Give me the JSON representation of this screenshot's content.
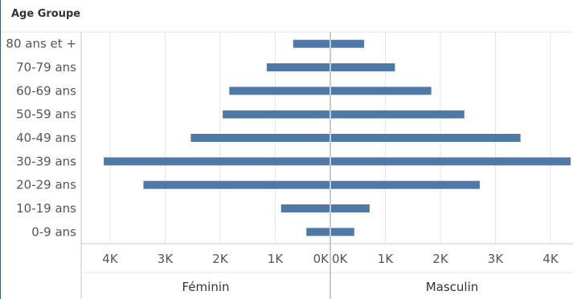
{
  "header": {
    "label": "Age Groupe"
  },
  "colors": {
    "bar": "#4e79a7",
    "grid": "#e6e6e6",
    "axis": "#c8c8c8",
    "zero": "#b8b8b8"
  },
  "chart_data": {
    "type": "bar",
    "orientation": "horizontal",
    "layout": "population-pyramid",
    "categories": [
      "80 ans et +",
      "70-79 ans",
      "60-69 ans",
      "50-59 ans",
      "40-49 ans",
      "30-39 ans",
      "20-29 ans",
      "10-19 ans",
      "0-9 ans"
    ],
    "series": [
      {
        "name": "Féminin",
        "values": [
          660,
          1140,
          1820,
          1940,
          2520,
          4100,
          3380,
          880,
          420
        ]
      },
      {
        "name": "Masculin",
        "values": [
          600,
          1160,
          1820,
          2420,
          3440,
          4350,
          2700,
          700,
          420
        ]
      }
    ],
    "xlim": [
      0,
      4350
    ],
    "ticks": [
      {
        "value": 4000,
        "label": "4K"
      },
      {
        "value": 3000,
        "label": "3K"
      },
      {
        "value": 2000,
        "label": "2K"
      },
      {
        "value": 1000,
        "label": "1K"
      },
      {
        "value": 0,
        "label": "0K"
      }
    ],
    "ticks_right": [
      {
        "value": 0,
        "label": "0K"
      },
      {
        "value": 1000,
        "label": "1K"
      },
      {
        "value": 2000,
        "label": "2K"
      },
      {
        "value": 3000,
        "label": "3K"
      },
      {
        "value": 4000,
        "label": "4K"
      }
    ],
    "grid": true
  }
}
